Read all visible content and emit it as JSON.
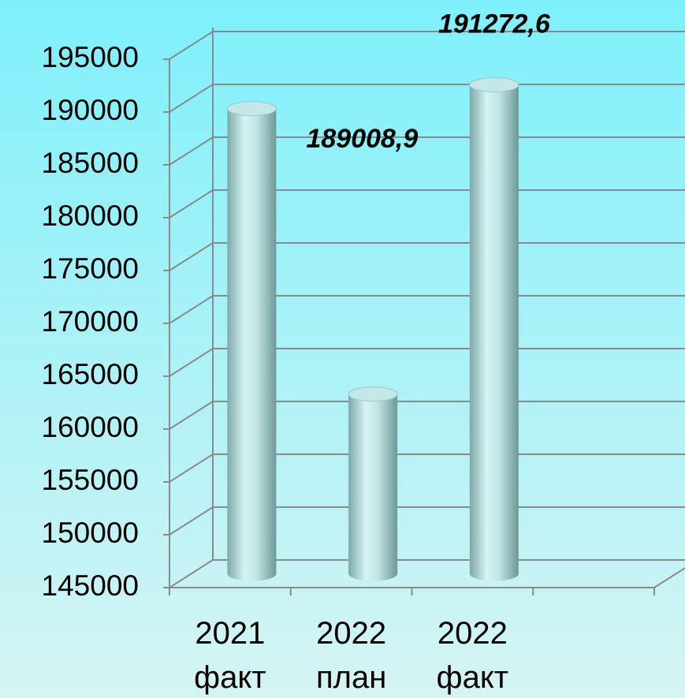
{
  "chart_data": {
    "type": "bar",
    "categories": [
      "2021 факт",
      "2022 план",
      "2022 факт",
      null
    ],
    "values": [
      189008.9,
      162000,
      191272.6,
      null
    ],
    "value_labels": [
      "189008,9",
      null,
      "191272,6",
      null
    ],
    "color": "#a8d8d8",
    "ylim": [
      145000,
      195000
    ],
    "yticks": [
      145000,
      150000,
      155000,
      160000,
      165000,
      170000,
      175000,
      180000,
      185000,
      190000,
      195000
    ],
    "grid": true
  }
}
